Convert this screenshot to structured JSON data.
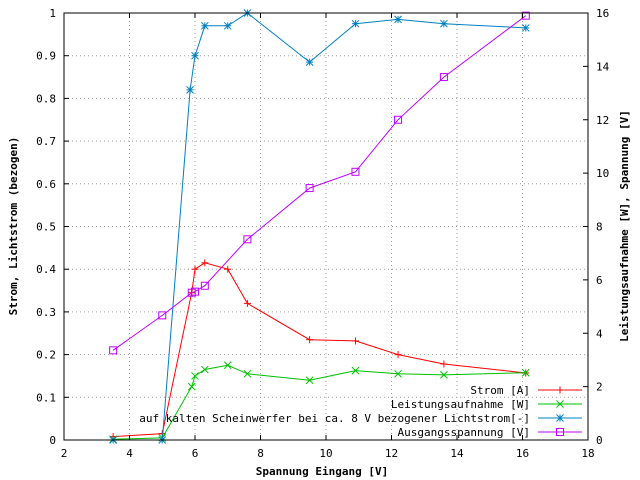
{
  "chart_data": {
    "type": "line",
    "xlabel": "Spannung Eingang [V]",
    "ylabel": "Strom, Lichtstrom (bezogen)",
    "y2label": "Leistungsaufnahme [W], Spannung [V]",
    "xlim": [
      2,
      18
    ],
    "ylim": [
      0,
      1
    ],
    "y2lim": [
      0,
      16
    ],
    "xticks": [
      2,
      4,
      6,
      8,
      10,
      12,
      14,
      16,
      18
    ],
    "yticks": [
      0,
      0.1,
      0.2,
      0.3,
      0.4,
      0.5,
      0.6,
      0.7,
      0.8,
      0.9,
      1
    ],
    "y2ticks": [
      0,
      2,
      4,
      6,
      8,
      10,
      12,
      14,
      16
    ],
    "grid": true,
    "legend_position": "bottom-right",
    "series": [
      {
        "name": "Strom [A]",
        "axis": "left",
        "color": "#ff0000",
        "marker": "plus",
        "x": [
          3.5,
          5.0,
          5.9,
          6.0,
          6.3,
          7.0,
          7.6,
          9.5,
          10.9,
          12.2,
          13.6,
          16.1
        ],
        "y": [
          0.008,
          0.015,
          0.345,
          0.4,
          0.415,
          0.4,
          0.32,
          0.235,
          0.232,
          0.2,
          0.178,
          0.157
        ]
      },
      {
        "name": "Leistungsaufnahme [W]",
        "axis": "right",
        "color": "#00c000",
        "marker": "cross",
        "x": [
          3.5,
          5.0,
          5.9,
          6.0,
          6.3,
          7.0,
          7.6,
          9.5,
          10.9,
          12.2,
          13.6,
          16.1
        ],
        "y": [
          0.03,
          0.08,
          2.0,
          2.4,
          2.64,
          2.8,
          2.48,
          2.24,
          2.6,
          2.48,
          2.44,
          2.52
        ]
      },
      {
        "name": "auf kalten Scheinwerfer bei ca. 8 V bezogener Lichtstrom[-]",
        "axis": "left",
        "color": "#0080c0",
        "marker": "star",
        "x": [
          3.5,
          5.0,
          5.85,
          6.0,
          6.3,
          7.0,
          7.6,
          9.5,
          10.9,
          12.2,
          13.6,
          16.1
        ],
        "y": [
          0.0,
          0.0,
          0.82,
          0.9,
          0.97,
          0.97,
          1.0,
          0.885,
          0.975,
          0.985,
          0.975,
          0.965
        ]
      },
      {
        "name": "Ausgangsspannung [V]",
        "axis": "right",
        "color": "#c000ff",
        "marker": "square",
        "x": [
          3.5,
          5.0,
          5.9,
          6.0,
          6.3,
          7.6,
          9.5,
          10.9,
          12.2,
          13.6,
          16.1
        ],
        "y": [
          3.36,
          4.67,
          5.52,
          5.56,
          5.78,
          7.52,
          9.44,
          10.05,
          12.0,
          13.6,
          15.9
        ]
      }
    ]
  }
}
